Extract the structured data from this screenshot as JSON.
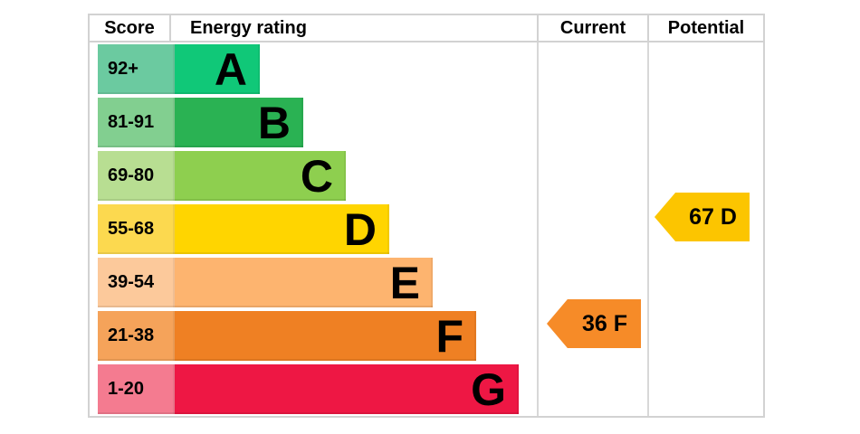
{
  "header": {
    "score": "Score",
    "energy_rating": "Energy rating",
    "current": "Current",
    "potential": "Potential"
  },
  "chart_data": {
    "type": "table",
    "title": "Energy rating",
    "columns": [
      "Score",
      "Energy rating",
      "Current",
      "Potential"
    ],
    "bands": [
      {
        "score_range": "92+",
        "letter": "A",
        "bar_color": "#10c878",
        "score_color": "#6bcaa0"
      },
      {
        "score_range": "81-91",
        "letter": "B",
        "bar_color": "#2ab253",
        "score_color": "#82cf90"
      },
      {
        "score_range": "69-80",
        "letter": "C",
        "bar_color": "#8ecf4f",
        "score_color": "#b8de92"
      },
      {
        "score_range": "55-68",
        "letter": "D",
        "bar_color": "#ffd500",
        "score_color": "#fcd94f"
      },
      {
        "score_range": "39-54",
        "letter": "E",
        "bar_color": "#fdb46f",
        "score_color": "#fcc99b"
      },
      {
        "score_range": "21-38",
        "letter": "F",
        "bar_color": "#ef8023",
        "score_color": "#f5a35a"
      },
      {
        "score_range": "1-20",
        "letter": "G",
        "bar_color": "#ee1744",
        "score_color": "#f47b90"
      }
    ],
    "current": {
      "score": 36,
      "band": "F",
      "label": "36 F",
      "color": "#f68b28"
    },
    "potential": {
      "score": 67,
      "band": "D",
      "label": "67 D",
      "color": "#fcc500"
    }
  }
}
